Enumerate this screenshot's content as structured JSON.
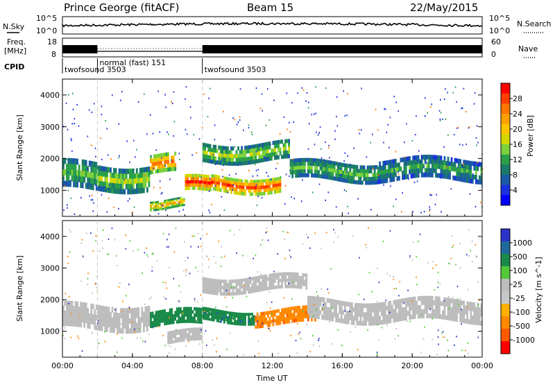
{
  "header": {
    "station": "Prince George (fitACF)",
    "beam": "Beam 15",
    "date": "22/May/2015"
  },
  "strip": {
    "nsky_label": "N.Sky",
    "nsky_ticks": [
      "10^5",
      "10^0"
    ],
    "nsearch_label": "N.Search",
    "nsearch_ticks": [
      "10^5",
      "10^0"
    ],
    "freq_label_1": "Freq.",
    "freq_label_2": "[MHz]",
    "freq_ticks": [
      "18",
      "8"
    ],
    "nave_label": "Nave",
    "nave_ticks": [
      "60",
      "0"
    ],
    "cpid_label": "CPID",
    "cpid_segments": [
      {
        "name": "twofsound 3503",
        "start_hour": 0,
        "end_hour": 2
      },
      {
        "name": "normal (fast) 151",
        "start_hour": 2,
        "end_hour": 8
      },
      {
        "name": "twofsound 3503",
        "start_hour": 8,
        "end_hour": 24
      }
    ]
  },
  "power_panel": {
    "ylabel": "Slant Range [km]",
    "yticks": [
      "4000",
      "3000",
      "2000",
      "1000"
    ],
    "cbar_label": "Power [dB]",
    "cbar_ticks": [
      "28",
      "24",
      "20",
      "16",
      "12",
      "8",
      "4"
    ],
    "cbar_colors": [
      "#ff0000",
      "#ff3c00",
      "#ff7700",
      "#ff9f00",
      "#ffc400",
      "#d6d600",
      "#7cd13c",
      "#2aa04a",
      "#1c7a6a",
      "#1a5aa8",
      "#1a30dd",
      "#0000ff"
    ]
  },
  "velocity_panel": {
    "ylabel": "Slant Range [km]",
    "yticks": [
      "4000",
      "3000",
      "2000",
      "1000"
    ],
    "cbar_label": "Velocity [m s^-1]",
    "cbar_ticks": [
      "1000",
      "500",
      "100",
      "25",
      "-25",
      "-100",
      "-500",
      "-1000"
    ],
    "cbar_colors": [
      "#2a35c8",
      "#1f6a9a",
      "#1a8a4a",
      "#55c83a",
      "#bdbdbd",
      "#c8c8c8",
      "#ffb000",
      "#ff8a00",
      "#ff5a00",
      "#ff0000"
    ]
  },
  "xaxis": {
    "label": "Time UT",
    "ticks": [
      "00:00",
      "04:00",
      "08:00",
      "12:00",
      "16:00",
      "20:00",
      "00:00"
    ]
  },
  "chart_data": [
    {
      "type": "heatmap",
      "title": "Power",
      "xlabel": "Time UT",
      "ylabel": "Slant Range [km]",
      "x_range_hours": [
        0,
        24
      ],
      "ylim": [
        180,
        4500
      ],
      "colorbar": {
        "label": "Power [dB]",
        "range": [
          0,
          32
        ]
      },
      "bands": [
        {
          "x": [
            0,
            2
          ],
          "range_center_km": 1450,
          "range_width_km": 900,
          "power_db": 14
        },
        {
          "x": [
            2,
            5
          ],
          "range_center_km": 1400,
          "range_width_km": 800,
          "power_db": 16
        },
        {
          "x": [
            5,
            6.5
          ],
          "range_center_km": 1800,
          "range_width_km": 600,
          "power_db": 26
        },
        {
          "x": [
            5,
            7
          ],
          "range_center_km": 600,
          "range_width_km": 300,
          "power_db": 22
        },
        {
          "x": [
            7,
            8.5
          ],
          "range_center_km": 1150,
          "range_width_km": 500,
          "power_db": 30
        },
        {
          "x": [
            8.5,
            12.5
          ],
          "range_center_km": 1200,
          "range_width_km": 500,
          "power_db": 28
        },
        {
          "x": [
            8,
            13
          ],
          "range_center_km": 2200,
          "range_width_km": 600,
          "power_db": 16
        },
        {
          "x": [
            13,
            18
          ],
          "range_center_km": 1600,
          "range_width_km": 600,
          "power_db": 14
        },
        {
          "x": [
            18,
            24
          ],
          "range_center_km": 1650,
          "range_width_km": 700,
          "power_db": 12
        }
      ]
    },
    {
      "type": "heatmap",
      "title": "Velocity",
      "xlabel": "Time UT",
      "ylabel": "Slant Range [km]",
      "x_range_hours": [
        0,
        24
      ],
      "ylim": [
        180,
        4500
      ],
      "colorbar": {
        "label": "Velocity [m s^-1]",
        "range": [
          -1000,
          1000
        ]
      },
      "bands": [
        {
          "x": [
            0,
            5
          ],
          "range_center_km": 1450,
          "range_width_km": 800,
          "velocity": 0
        },
        {
          "x": [
            5,
            8
          ],
          "range_center_km": 1400,
          "range_width_km": 500,
          "velocity": 150
        },
        {
          "x": [
            6,
            8
          ],
          "range_center_km": 800,
          "range_width_km": 400,
          "velocity": 0
        },
        {
          "x": [
            8,
            11
          ],
          "range_center_km": 1500,
          "range_width_km": 400,
          "velocity": 200
        },
        {
          "x": [
            11,
            14.5
          ],
          "range_center_km": 1450,
          "range_width_km": 500,
          "velocity": -200
        },
        {
          "x": [
            8,
            14
          ],
          "range_center_km": 2500,
          "range_width_km": 500,
          "velocity": 0
        },
        {
          "x": [
            14,
            24
          ],
          "range_center_km": 1650,
          "range_width_km": 700,
          "velocity": 0
        }
      ]
    }
  ]
}
